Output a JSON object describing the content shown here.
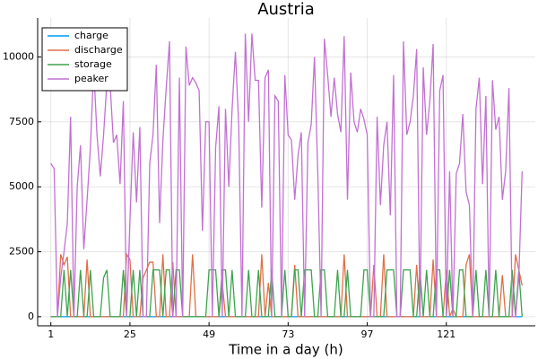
{
  "chart_data": {
    "type": "line",
    "title": "Austria",
    "x_label": "Time in a day (h)",
    "x": [
      1,
      2,
      3,
      4,
      5,
      6,
      7,
      8,
      9,
      10,
      11,
      12,
      13,
      14,
      15,
      16,
      17,
      18,
      19,
      20,
      21,
      22,
      23,
      24,
      25,
      26,
      27,
      28,
      29,
      30,
      31,
      32,
      33,
      34,
      35,
      36,
      37,
      38,
      39,
      40,
      41,
      42,
      43,
      44,
      45,
      46,
      47,
      48,
      49,
      50,
      51,
      52,
      53,
      54,
      55,
      56,
      57,
      58,
      59,
      60,
      61,
      62,
      63,
      64,
      65,
      66,
      67,
      68,
      69,
      70,
      71,
      72,
      73,
      74,
      75,
      76,
      77,
      78,
      79,
      80,
      81,
      82,
      83,
      84,
      85,
      86,
      87,
      88,
      89,
      90,
      91,
      92,
      93,
      94,
      95,
      96,
      97,
      98,
      99,
      100,
      101,
      102,
      103,
      104,
      105,
      106,
      107,
      108,
      109,
      110,
      111,
      112,
      113,
      114,
      115,
      116,
      117,
      118,
      119,
      120,
      121,
      122,
      123,
      124,
      125,
      126,
      127,
      128,
      129,
      130,
      131,
      132,
      133,
      134,
      135,
      136,
      137,
      138,
      139,
      140,
      141,
      142,
      143,
      144
    ],
    "series": [
      {
        "name": "charge",
        "color": "#009af9",
        "values": [
          0,
          0,
          0,
          0,
          0,
          0,
          0,
          0,
          0,
          0,
          0,
          0,
          0,
          0,
          0,
          0,
          0,
          0,
          0,
          0,
          0,
          0,
          0,
          0,
          0,
          0,
          0,
          0,
          0,
          0,
          0,
          0,
          0,
          0,
          0,
          0,
          0,
          0,
          0,
          0,
          0,
          0,
          0,
          0,
          0,
          0,
          0,
          0,
          0,
          0,
          0,
          0,
          0,
          0,
          0,
          0,
          0,
          0,
          0,
          0,
          0,
          0,
          0,
          0,
          0,
          0,
          0,
          0,
          0,
          0,
          0,
          0,
          0,
          0,
          0,
          0,
          0,
          0,
          0,
          0,
          0,
          0,
          0,
          0,
          0,
          0,
          0,
          0,
          0,
          0,
          0,
          0,
          0,
          0,
          0,
          0,
          0,
          0,
          0,
          0,
          0,
          0,
          0,
          0,
          0,
          0,
          0,
          0,
          0,
          0,
          0,
          0,
          0,
          0,
          0,
          0,
          0,
          0,
          0,
          0,
          0,
          0,
          0,
          0,
          0,
          0,
          0,
          0,
          0,
          0,
          0,
          0,
          0,
          0,
          0,
          0,
          0,
          0,
          0,
          0,
          0,
          0,
          0,
          0
        ]
      },
      {
        "name": "discharge",
        "color": "#e26f46",
        "values": [
          0,
          0,
          0,
          2400,
          2000,
          2300,
          0,
          0,
          0,
          0,
          0,
          2200,
          0,
          0,
          0,
          0,
          0,
          0,
          0,
          0,
          0,
          0,
          0,
          2400,
          2200,
          0,
          0,
          0,
          1500,
          1800,
          2100,
          2100,
          0,
          0,
          2400,
          0,
          0,
          2100,
          0,
          0,
          0,
          0,
          0,
          2400,
          0,
          0,
          0,
          0,
          0,
          0,
          0,
          0,
          1300,
          0,
          0,
          0,
          0,
          0,
          0,
          0,
          0,
          0,
          0,
          0,
          2400,
          0,
          1300,
          0,
          0,
          0,
          0,
          0,
          0,
          0,
          2000,
          0,
          0,
          0,
          0,
          0,
          0,
          0,
          0,
          0,
          0,
          0,
          0,
          0,
          0,
          2400,
          0,
          0,
          0,
          0,
          0,
          0,
          0,
          0,
          2000,
          0,
          0,
          2400,
          0,
          0,
          0,
          0,
          0,
          0,
          0,
          0,
          0,
          2000,
          0,
          0,
          0,
          0,
          2200,
          0,
          0,
          0,
          1800,
          0,
          300,
          0,
          0,
          0,
          2000,
          2400,
          0,
          0,
          0,
          0,
          0,
          0,
          0,
          0,
          0,
          1600,
          0,
          0,
          0,
          2400,
          1800,
          1200
        ]
      },
      {
        "name": "storage",
        "color": "#3da44d",
        "values": [
          0,
          0,
          0,
          0,
          1800,
          0,
          1800,
          0,
          0,
          1800,
          0,
          0,
          1800,
          0,
          0,
          0,
          1500,
          1800,
          0,
          0,
          0,
          0,
          1800,
          0,
          0,
          1800,
          0,
          1800,
          0,
          0,
          0,
          1800,
          1800,
          1800,
          0,
          1800,
          1800,
          0,
          1800,
          1800,
          0,
          0,
          0,
          0,
          0,
          0,
          0,
          0,
          1800,
          1800,
          1800,
          0,
          1800,
          1800,
          0,
          1800,
          0,
          0,
          0,
          0,
          1800,
          0,
          0,
          1800,
          0,
          0,
          0,
          1800,
          0,
          0,
          0,
          1800,
          0,
          0,
          1800,
          1800,
          0,
          1800,
          1800,
          1800,
          0,
          0,
          1800,
          1800,
          0,
          0,
          0,
          1800,
          0,
          0,
          1800,
          0,
          0,
          0,
          0,
          1800,
          1800,
          0,
          0,
          0,
          0,
          0,
          1800,
          1800,
          1800,
          0,
          0,
          1800,
          1800,
          1800,
          0,
          0,
          1800,
          0,
          1800,
          0,
          0,
          1800,
          1800,
          0,
          0,
          1800,
          0,
          0,
          1800,
          1800,
          0,
          0,
          0,
          1800,
          0,
          0,
          1800,
          0,
          0,
          1800,
          0,
          0,
          0,
          0,
          1800,
          0,
          1800,
          0
        ]
      },
      {
        "name": "peaker",
        "color": "#c271d2",
        "values": [
          5900,
          5700,
          0,
          1500,
          2500,
          3600,
          7700,
          0,
          5000,
          6600,
          2600,
          4500,
          6500,
          9600,
          7000,
          5400,
          7000,
          9000,
          8900,
          6700,
          7000,
          5100,
          8300,
          0,
          3700,
          7100,
          4400,
          7300,
          0,
          0,
          5900,
          7000,
          9700,
          3600,
          6800,
          8800,
          10600,
          0,
          0,
          9200,
          0,
          10400,
          8900,
          9200,
          9000,
          8700,
          3300,
          7500,
          7500,
          0,
          6500,
          8100,
          0,
          8000,
          5000,
          8000,
          10200,
          7400,
          0,
          10900,
          7500,
          10900,
          9100,
          9100,
          4200,
          9200,
          9500,
          0,
          8500,
          8300,
          0,
          9300,
          7000,
          6800,
          4500,
          6200,
          7100,
          0,
          6700,
          7400,
          10000,
          5500,
          0,
          10700,
          9300,
          7700,
          9200,
          7800,
          7100,
          10800,
          4500,
          9400,
          7500,
          7100,
          8000,
          7600,
          7000,
          0,
          0,
          7700,
          4300,
          6600,
          7500,
          3900,
          9300,
          0,
          0,
          10600,
          7000,
          7500,
          8500,
          10300,
          0,
          9600,
          7000,
          8300,
          10500,
          0,
          8700,
          9300,
          0,
          5600,
          0,
          5500,
          5900,
          7800,
          4800,
          4300,
          0,
          8000,
          9200,
          5100,
          8500,
          0,
          9100,
          7200,
          7700,
          4500,
          5600,
          8800,
          0,
          0,
          1500,
          5600
        ]
      }
    ],
    "xlim": [
      -3,
      148
    ],
    "xticks": [
      1,
      25,
      49,
      73,
      97,
      121
    ],
    "ylim": [
      -350,
      11500
    ],
    "yticks": [
      0,
      2500,
      5000,
      7500,
      10000
    ],
    "grid": true,
    "legend": "top-left"
  }
}
